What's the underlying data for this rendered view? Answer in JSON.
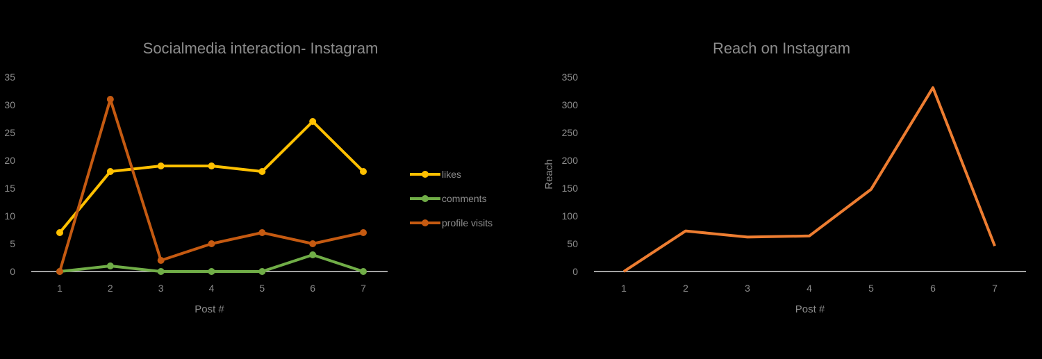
{
  "chart_data": [
    {
      "type": "line",
      "title": "Socialmedia interaction- Instagram",
      "xlabel": "Post #",
      "ylabel": "",
      "categories": [
        "1",
        "2",
        "3",
        "4",
        "5",
        "6",
        "7"
      ],
      "ylim": [
        0,
        35
      ],
      "yticks": [
        "0",
        "5",
        "10",
        "15",
        "20",
        "25",
        "30",
        "35"
      ],
      "grid": false,
      "legend_position": "right",
      "series": [
        {
          "name": "likes",
          "color": "#ffc000",
          "values": [
            7,
            18,
            19,
            19,
            18,
            27,
            18
          ]
        },
        {
          "name": "comments",
          "color": "#70ad47",
          "values": [
            0,
            1,
            0,
            0,
            0,
            3,
            0
          ]
        },
        {
          "name": "profile visits",
          "color": "#c55a11",
          "values": [
            0,
            31,
            2,
            5,
            7,
            5,
            7
          ]
        }
      ]
    },
    {
      "type": "line",
      "title": "Reach on Instagram",
      "xlabel": "Post #",
      "ylabel": "Reach",
      "categories": [
        "1",
        "2",
        "3",
        "4",
        "5",
        "6",
        "7"
      ],
      "ylim": [
        0,
        350
      ],
      "yticks": [
        "0",
        "50",
        "100",
        "150",
        "200",
        "250",
        "300",
        "350"
      ],
      "grid": false,
      "series": [
        {
          "name": "Reach",
          "color": "#ed7d31",
          "values": [
            0,
            73,
            62,
            64,
            148,
            331,
            46
          ]
        }
      ]
    }
  ]
}
